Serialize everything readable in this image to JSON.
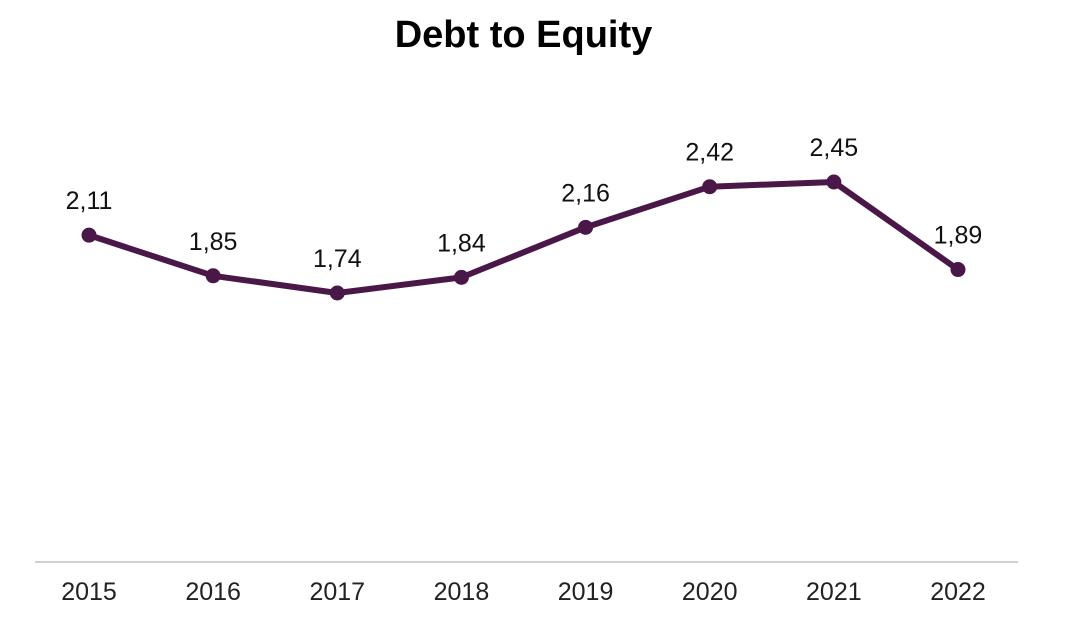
{
  "chart_data": {
    "type": "line",
    "title": "Debt to Equity",
    "xlabel": "",
    "ylabel": "",
    "categories": [
      "2015",
      "2016",
      "2017",
      "2018",
      "2019",
      "2020",
      "2021",
      "2022"
    ],
    "series": [
      {
        "values": [
          2.11,
          1.85,
          1.74,
          1.84,
          2.16,
          2.42,
          2.45,
          1.89
        ],
        "labels": [
          "2,11",
          "1,85",
          "1,74",
          "1,84",
          "2,16",
          "2,42",
          "2,45",
          "1,89"
        ],
        "color": "#4a1848"
      }
    ],
    "ylim": [
      0,
      3
    ],
    "grid": false,
    "legend": "none",
    "axis_color": "#d0d0d0"
  }
}
